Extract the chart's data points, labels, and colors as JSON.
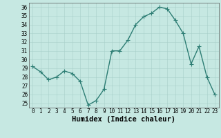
{
  "x": [
    0,
    1,
    2,
    3,
    4,
    5,
    6,
    7,
    8,
    9,
    10,
    11,
    12,
    13,
    14,
    15,
    16,
    17,
    18,
    19,
    20,
    21,
    22,
    23
  ],
  "y": [
    29.2,
    28.6,
    27.7,
    28.0,
    28.7,
    28.4,
    27.5,
    24.8,
    25.3,
    26.6,
    31.0,
    31.0,
    32.2,
    34.0,
    34.9,
    35.3,
    36.0,
    35.8,
    34.5,
    33.0,
    29.5,
    31.5,
    28.0,
    26.0
  ],
  "line_color": "#2d7d74",
  "marker_color": "#2d7d74",
  "bg_color": "#c6e8e2",
  "grid_color": "#a8cfc9",
  "xlabel": "Humidex (Indice chaleur)",
  "ylim": [
    24.5,
    36.5
  ],
  "xlim": [
    -0.5,
    23.5
  ],
  "yticks": [
    25,
    26,
    27,
    28,
    29,
    30,
    31,
    32,
    33,
    34,
    35,
    36
  ],
  "xticks": [
    0,
    1,
    2,
    3,
    4,
    5,
    6,
    7,
    8,
    9,
    10,
    11,
    12,
    13,
    14,
    15,
    16,
    17,
    18,
    19,
    20,
    21,
    22,
    23
  ],
  "xtick_labels": [
    "0",
    "1",
    "2",
    "3",
    "4",
    "5",
    "6",
    "7",
    "8",
    "9",
    "10",
    "11",
    "12",
    "13",
    "14",
    "15",
    "16",
    "17",
    "18",
    "19",
    "20",
    "21",
    "22",
    "23"
  ],
  "tick_fontsize": 5.5,
  "xlabel_fontsize": 7.5,
  "marker_size": 2.2,
  "line_width": 1.0
}
